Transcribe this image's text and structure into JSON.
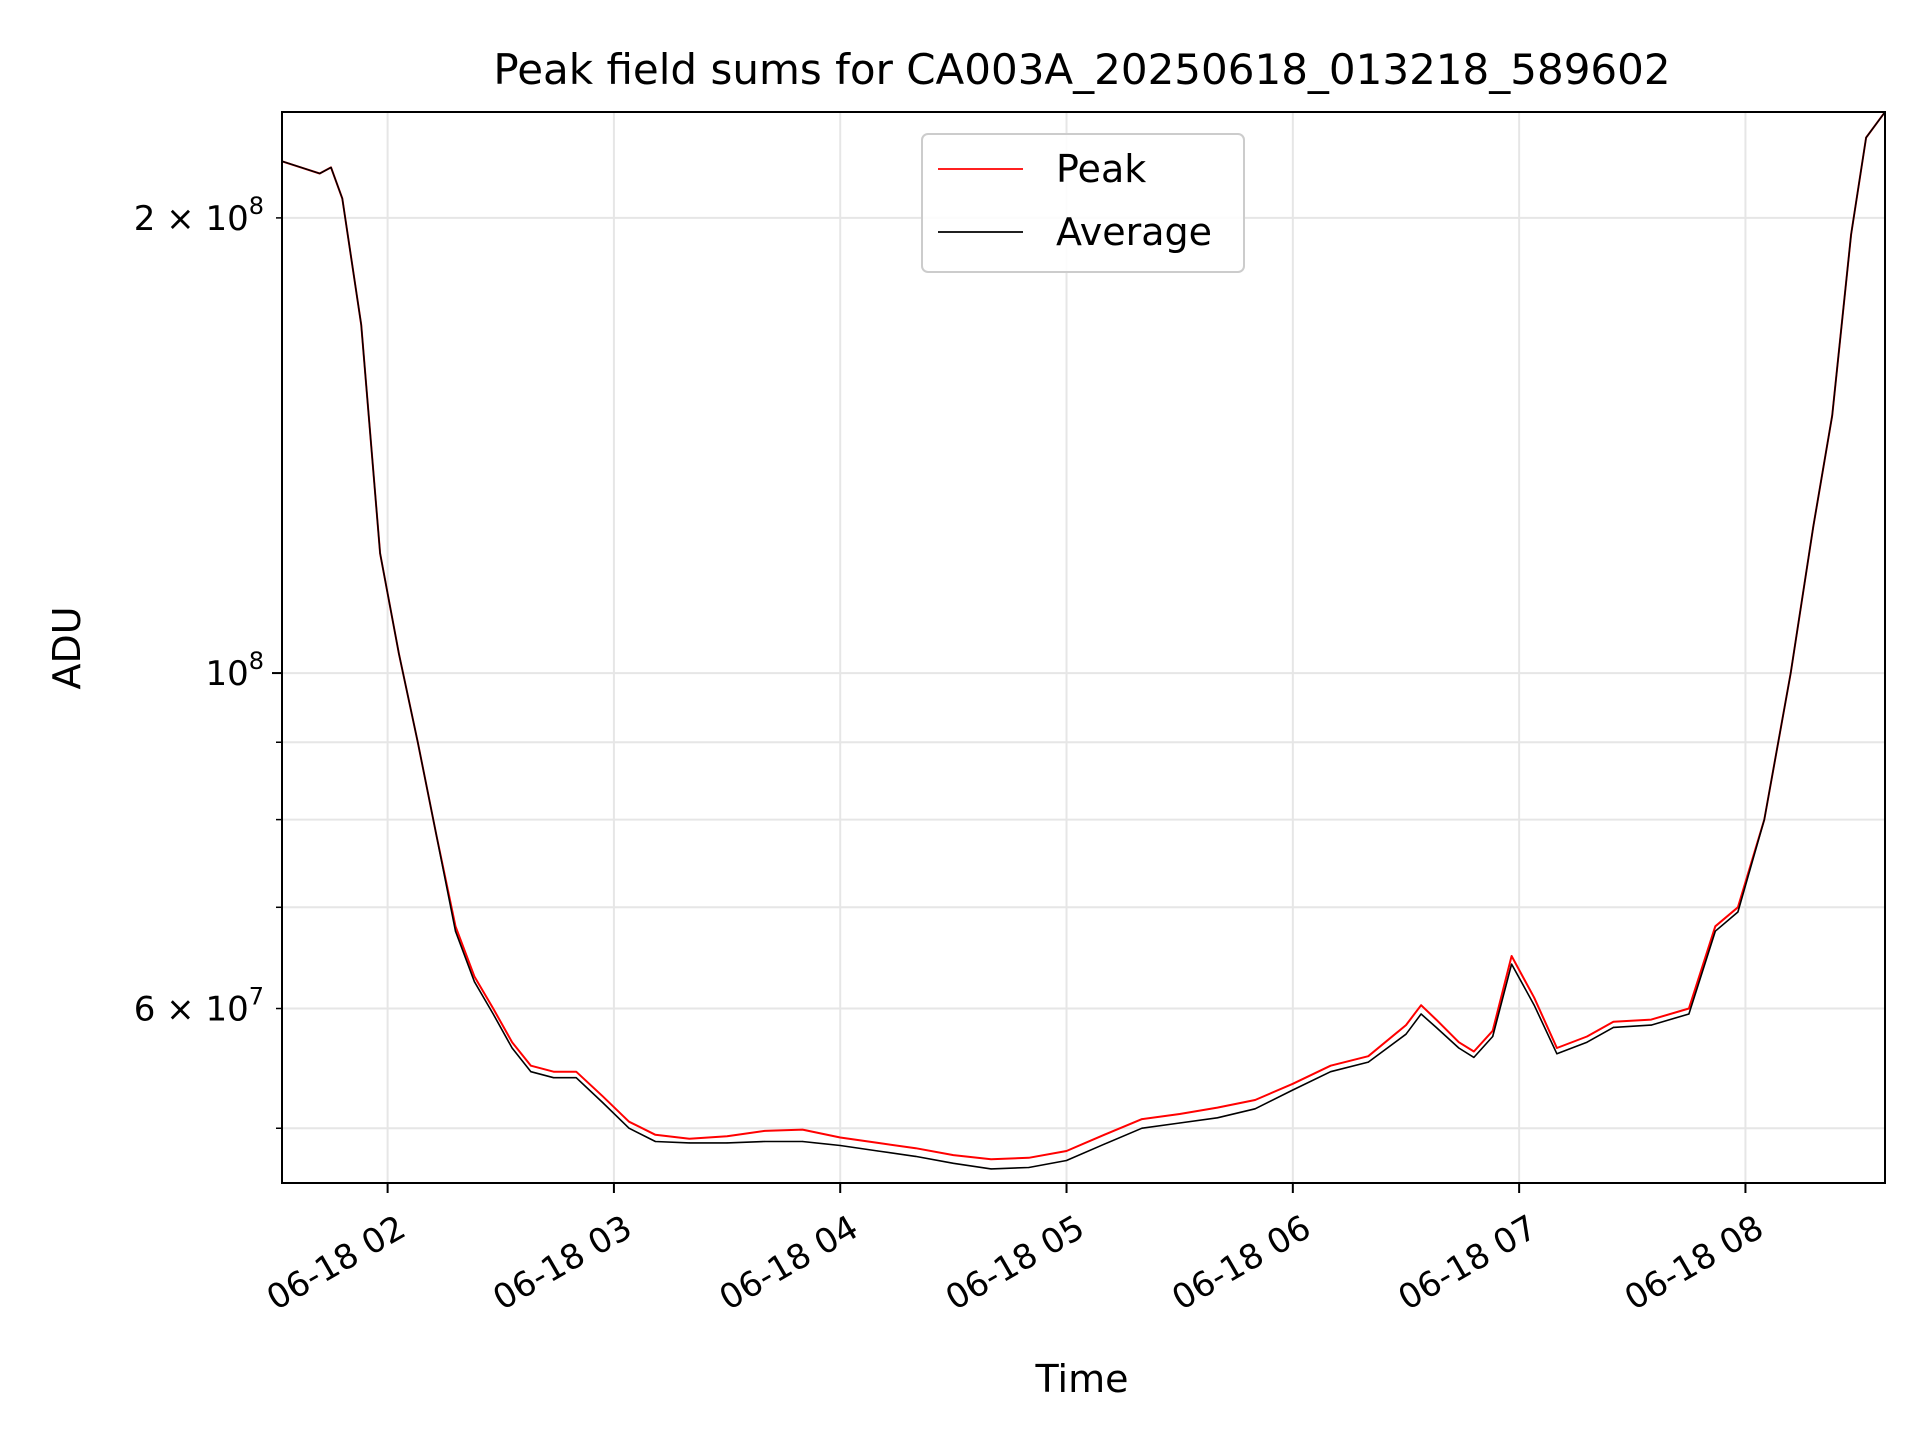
{
  "chart_data": {
    "type": "line",
    "title": "Peak field sums for CA003A_20250618_013218_589602",
    "xlabel": "Time",
    "ylabel": "ADU",
    "yscale": "log",
    "grid": true,
    "legend_position": "top-center",
    "x_type": "datetime",
    "xlim": [
      "2025-06-18 01:32",
      "2025-06-18 08:37"
    ],
    "ylim": [
      46000000,
      235000000
    ],
    "x_ticks": [
      {
        "value": "2025-06-18 02:00",
        "label": "06-18 02"
      },
      {
        "value": "2025-06-18 03:00",
        "label": "06-18 03"
      },
      {
        "value": "2025-06-18 04:00",
        "label": "06-18 04"
      },
      {
        "value": "2025-06-18 05:00",
        "label": "06-18 05"
      },
      {
        "value": "2025-06-18 06:00",
        "label": "06-18 06"
      },
      {
        "value": "2025-06-18 07:00",
        "label": "06-18 07"
      },
      {
        "value": "2025-06-18 08:00",
        "label": "06-18 08"
      }
    ],
    "y_ticks_major": [
      {
        "value": 100000000,
        "base": "10",
        "exp": "8"
      }
    ],
    "y_ticks_minor": [
      {
        "value": 60000000,
        "mant": "6",
        "base": "10",
        "exp": "7"
      },
      {
        "value": 200000000,
        "mant": "2",
        "base": "10",
        "exp": "8"
      }
    ],
    "y_grid_minor_values": [
      50000000,
      60000000,
      70000000,
      80000000,
      90000000,
      200000000
    ],
    "colors": {
      "peak": "#ff0000",
      "average": "#000000",
      "grid": "#e6e6e6"
    },
    "series": [
      {
        "name": "Peak",
        "color": "#ff0000",
        "points": [
          [
            "2025-06-18 01:32",
            218000000
          ],
          [
            "2025-06-18 01:37",
            216000000
          ],
          [
            "2025-06-18 01:42",
            214000000
          ],
          [
            "2025-06-18 01:45",
            216000000
          ],
          [
            "2025-06-18 01:48",
            206000000
          ],
          [
            "2025-06-18 01:53",
            170000000
          ],
          [
            "2025-06-18 01:58",
            120000000
          ],
          [
            "2025-06-18 02:03",
            103000000
          ],
          [
            "2025-06-18 02:08",
            90000000
          ],
          [
            "2025-06-18 02:13",
            78000000
          ],
          [
            "2025-06-18 02:18",
            68000000
          ],
          [
            "2025-06-18 02:23",
            63000000
          ],
          [
            "2025-06-18 02:28",
            60000000
          ],
          [
            "2025-06-18 02:33",
            57000000
          ],
          [
            "2025-06-18 02:38",
            55000000
          ],
          [
            "2025-06-18 02:44",
            54500000
          ],
          [
            "2025-06-18 02:50",
            54500000
          ],
          [
            "2025-06-18 02:57",
            52500000
          ],
          [
            "2025-06-18 03:04",
            50500000
          ],
          [
            "2025-06-18 03:11",
            49500000
          ],
          [
            "2025-06-18 03:20",
            49200000
          ],
          [
            "2025-06-18 03:30",
            49400000
          ],
          [
            "2025-06-18 03:40",
            49800000
          ],
          [
            "2025-06-18 03:50",
            49900000
          ],
          [
            "2025-06-18 04:00",
            49300000
          ],
          [
            "2025-06-18 04:10",
            48900000
          ],
          [
            "2025-06-18 04:20",
            48500000
          ],
          [
            "2025-06-18 04:30",
            48000000
          ],
          [
            "2025-06-18 04:40",
            47700000
          ],
          [
            "2025-06-18 04:50",
            47800000
          ],
          [
            "2025-06-18 05:00",
            48300000
          ],
          [
            "2025-06-18 05:10",
            49500000
          ],
          [
            "2025-06-18 05:20",
            50700000
          ],
          [
            "2025-06-18 05:30",
            51100000
          ],
          [
            "2025-06-18 05:40",
            51600000
          ],
          [
            "2025-06-18 05:50",
            52200000
          ],
          [
            "2025-06-18 06:00",
            53500000
          ],
          [
            "2025-06-18 06:10",
            55000000
          ],
          [
            "2025-06-18 06:20",
            55800000
          ],
          [
            "2025-06-18 06:30",
            58500000
          ],
          [
            "2025-06-18 06:34",
            60300000
          ],
          [
            "2025-06-18 06:38",
            59000000
          ],
          [
            "2025-06-18 06:44",
            57000000
          ],
          [
            "2025-06-18 06:48",
            56200000
          ],
          [
            "2025-06-18 06:53",
            58000000
          ],
          [
            "2025-06-18 06:58",
            65000000
          ],
          [
            "2025-06-18 07:04",
            61000000
          ],
          [
            "2025-06-18 07:10",
            56500000
          ],
          [
            "2025-06-18 07:18",
            57500000
          ],
          [
            "2025-06-18 07:25",
            58800000
          ],
          [
            "2025-06-18 07:35",
            59000000
          ],
          [
            "2025-06-18 07:45",
            60000000
          ],
          [
            "2025-06-18 07:52",
            68000000
          ],
          [
            "2025-06-18 07:58",
            70000000
          ],
          [
            "2025-06-18 08:05",
            80000000
          ],
          [
            "2025-06-18 08:12",
            100000000
          ],
          [
            "2025-06-18 08:18",
            125000000
          ],
          [
            "2025-06-18 08:23",
            148000000
          ],
          [
            "2025-06-18 08:28",
            195000000
          ],
          [
            "2025-06-18 08:32",
            226000000
          ],
          [
            "2025-06-18 08:37",
            235000000
          ]
        ]
      },
      {
        "name": "Average",
        "color": "#000000",
        "points": [
          [
            "2025-06-18 01:32",
            218000000
          ],
          [
            "2025-06-18 01:37",
            216000000
          ],
          [
            "2025-06-18 01:42",
            214000000
          ],
          [
            "2025-06-18 01:45",
            216000000
          ],
          [
            "2025-06-18 01:48",
            206000000
          ],
          [
            "2025-06-18 01:53",
            170000000
          ],
          [
            "2025-06-18 01:58",
            120000000
          ],
          [
            "2025-06-18 02:03",
            103000000
          ],
          [
            "2025-06-18 02:08",
            90000000
          ],
          [
            "2025-06-18 02:13",
            78000000
          ],
          [
            "2025-06-18 02:18",
            67500000
          ],
          [
            "2025-06-18 02:23",
            62500000
          ],
          [
            "2025-06-18 02:28",
            59500000
          ],
          [
            "2025-06-18 02:33",
            56500000
          ],
          [
            "2025-06-18 02:38",
            54500000
          ],
          [
            "2025-06-18 02:44",
            54000000
          ],
          [
            "2025-06-18 02:50",
            54000000
          ],
          [
            "2025-06-18 02:57",
            52000000
          ],
          [
            "2025-06-18 03:04",
            50000000
          ],
          [
            "2025-06-18 03:11",
            49000000
          ],
          [
            "2025-06-18 03:20",
            48900000
          ],
          [
            "2025-06-18 03:30",
            48900000
          ],
          [
            "2025-06-18 03:40",
            49000000
          ],
          [
            "2025-06-18 03:50",
            49000000
          ],
          [
            "2025-06-18 04:00",
            48700000
          ],
          [
            "2025-06-18 04:10",
            48300000
          ],
          [
            "2025-06-18 04:20",
            47900000
          ],
          [
            "2025-06-18 04:30",
            47400000
          ],
          [
            "2025-06-18 04:40",
            47000000
          ],
          [
            "2025-06-18 04:50",
            47100000
          ],
          [
            "2025-06-18 05:00",
            47600000
          ],
          [
            "2025-06-18 05:10",
            48800000
          ],
          [
            "2025-06-18 05:20",
            50000000
          ],
          [
            "2025-06-18 05:30",
            50400000
          ],
          [
            "2025-06-18 05:40",
            50800000
          ],
          [
            "2025-06-18 05:50",
            51500000
          ],
          [
            "2025-06-18 06:00",
            53000000
          ],
          [
            "2025-06-18 06:10",
            54500000
          ],
          [
            "2025-06-18 06:20",
            55300000
          ],
          [
            "2025-06-18 06:30",
            57700000
          ],
          [
            "2025-06-18 06:34",
            59500000
          ],
          [
            "2025-06-18 06:38",
            58300000
          ],
          [
            "2025-06-18 06:44",
            56500000
          ],
          [
            "2025-06-18 06:48",
            55700000
          ],
          [
            "2025-06-18 06:53",
            57500000
          ],
          [
            "2025-06-18 06:58",
            64200000
          ],
          [
            "2025-06-18 07:04",
            60300000
          ],
          [
            "2025-06-18 07:10",
            56000000
          ],
          [
            "2025-06-18 07:18",
            57000000
          ],
          [
            "2025-06-18 07:25",
            58300000
          ],
          [
            "2025-06-18 07:35",
            58500000
          ],
          [
            "2025-06-18 07:45",
            59500000
          ],
          [
            "2025-06-18 07:52",
            67500000
          ],
          [
            "2025-06-18 07:58",
            69500000
          ],
          [
            "2025-06-18 08:05",
            80000000
          ],
          [
            "2025-06-18 08:12",
            100000000
          ],
          [
            "2025-06-18 08:18",
            125000000
          ],
          [
            "2025-06-18 08:23",
            148000000
          ],
          [
            "2025-06-18 08:28",
            195000000
          ],
          [
            "2025-06-18 08:32",
            226000000
          ],
          [
            "2025-06-18 08:37",
            235000000
          ]
        ]
      }
    ]
  }
}
